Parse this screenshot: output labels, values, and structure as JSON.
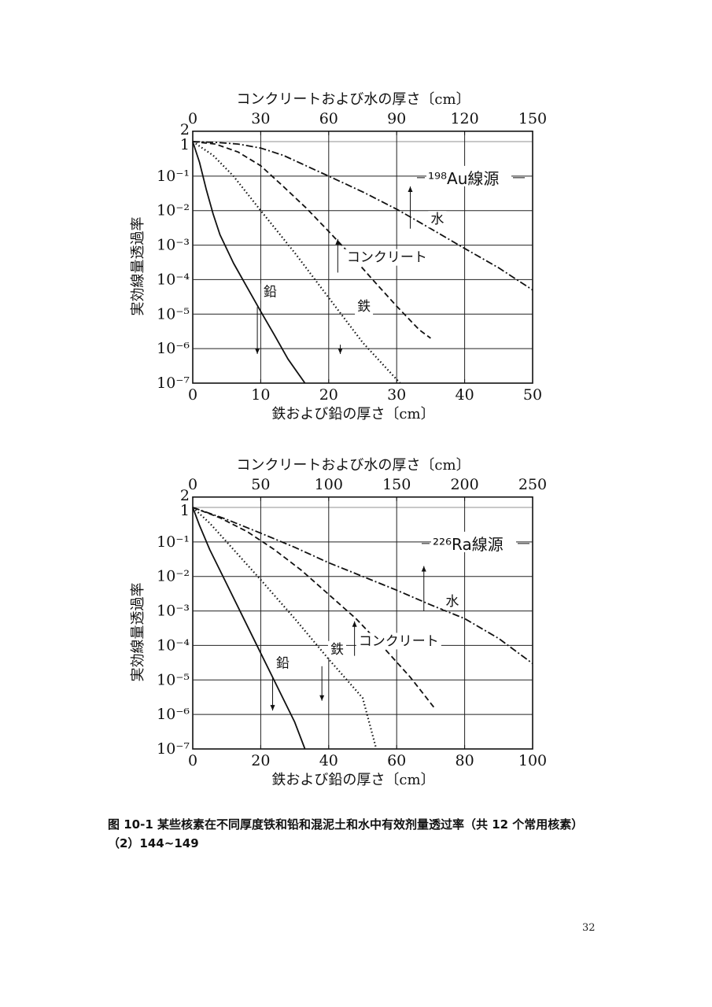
{
  "chart_data": [
    {
      "type": "line",
      "scale": "log",
      "source_label": "¹⁹⁸Au線源",
      "top_axis": {
        "label": "コンクリートおよび水の厚さ〔cm〕",
        "ticks": [
          0,
          30,
          60,
          90,
          120,
          150
        ],
        "range": [
          0,
          150
        ]
      },
      "bottom_axis": {
        "label": "鉄および鉛の厚さ〔cm〕",
        "ticks": [
          0,
          10,
          20,
          30,
          40,
          50
        ],
        "range": [
          0,
          50
        ]
      },
      "ylabel": "実効線量透過率",
      "ylim": [
        1e-07,
        2
      ],
      "yticks": [
        "2",
        "1",
        "10⁻¹",
        "10⁻²",
        "10⁻³",
        "10⁻⁴",
        "10⁻⁵",
        "10⁻⁶",
        "10⁻⁷"
      ],
      "grid": true,
      "series": [
        {
          "name": "鉛",
          "style": "solid",
          "axis": "bottom",
          "x": [
            0,
            1,
            2,
            3,
            4,
            6,
            8,
            10,
            12,
            14,
            16.5
          ],
          "y": [
            1,
            0.25,
            0.04,
            0.008,
            0.002,
            0.0003,
            6e-05,
            1.2e-05,
            2.5e-06,
            5e-07,
            1e-07
          ]
        },
        {
          "name": "鉄",
          "style": "dotted",
          "axis": "bottom",
          "x": [
            0,
            3,
            6,
            10,
            15,
            20,
            25,
            30.5
          ],
          "y": [
            1,
            0.4,
            0.1,
            0.01,
            0.0006,
            3e-05,
            1.5e-06,
            1e-07
          ]
        },
        {
          "name": "コンクリート",
          "style": "dashed",
          "axis": "top",
          "x": [
            0,
            10,
            20,
            30,
            40,
            50,
            60,
            70,
            80,
            90,
            100,
            105
          ],
          "y": [
            1,
            0.85,
            0.5,
            0.2,
            0.05,
            0.012,
            0.0025,
            0.0005,
            9e-05,
            1.7e-05,
            3.5e-06,
            2e-06
          ]
        },
        {
          "name": "水",
          "style": "dashdot",
          "axis": "top",
          "x": [
            0,
            10,
            20,
            30,
            40,
            50,
            60,
            75,
            90,
            105,
            120,
            135,
            150
          ],
          "y": [
            1,
            0.95,
            0.85,
            0.65,
            0.4,
            0.2,
            0.1,
            0.035,
            0.011,
            0.003,
            0.0008,
            0.00022,
            5e-05
          ]
        }
      ],
      "labels": [
        {
          "text": "水",
          "series": "水",
          "x": 105,
          "y": 0.0042,
          "axis": "top",
          "arrow": "up",
          "ax": 96,
          "ay0": 0.003,
          "ay1": 0.05
        },
        {
          "text": "コンクリート",
          "series": "コンクリート",
          "x": 68,
          "y": 0.00033,
          "axis": "top",
          "arrow": "up",
          "ax": 64,
          "ay0": 0.00016,
          "ay1": 0.0015
        },
        {
          "text": "鉛",
          "series": "鉛",
          "x": 10.4,
          "y": 3.3e-05,
          "axis": "bottom",
          "arrow": "down",
          "ax": 9.5,
          "ay0": 1.6e-05,
          "ay1": 7e-07
        },
        {
          "text": "鉄",
          "series": "鉄",
          "x": 24.2,
          "y": 1.25e-05,
          "axis": "bottom",
          "arrow": "down",
          "ax": 21.7,
          "ay0": 1.3e-06,
          "ay1": 7e-07
        }
      ]
    },
    {
      "type": "line",
      "scale": "log",
      "source_label": "²²⁶Ra線源",
      "top_axis": {
        "label": "コンクリートおよび水の厚さ〔cm〕",
        "ticks": [
          0,
          50,
          100,
          150,
          200,
          250
        ],
        "range": [
          0,
          250
        ]
      },
      "bottom_axis": {
        "label": "鉄および鉛の厚さ〔cm〕",
        "ticks": [
          0,
          20,
          40,
          60,
          80,
          100
        ],
        "range": [
          0,
          100
        ]
      },
      "ylabel": "実効線量透過率",
      "ylim": [
        1e-07,
        2
      ],
      "yticks": [
        "2",
        "1",
        "10⁻¹",
        "10⁻²",
        "10⁻³",
        "10⁻⁴",
        "10⁻⁵",
        "10⁻⁶",
        "10⁻⁷"
      ],
      "grid": true,
      "series": [
        {
          "name": "鉛",
          "style": "solid",
          "axis": "bottom",
          "x": [
            0,
            2,
            5,
            10,
            15,
            20,
            25,
            30,
            33
          ],
          "y": [
            1,
            0.3,
            0.06,
            0.006,
            0.0006,
            6e-05,
            6e-06,
            6e-07,
            1e-07
          ]
        },
        {
          "name": "鉄",
          "style": "dotted",
          "axis": "bottom",
          "x": [
            0,
            5,
            10,
            20,
            30,
            40,
            50,
            54
          ],
          "y": [
            1,
            0.35,
            0.1,
            0.008,
            0.0006,
            4e-05,
            3e-06,
            1e-07
          ]
        },
        {
          "name": "コンクリート",
          "style": "dashed",
          "axis": "top",
          "x": [
            0,
            20,
            40,
            60,
            80,
            100,
            120,
            140,
            160,
            178
          ],
          "y": [
            1,
            0.5,
            0.2,
            0.06,
            0.015,
            0.003,
            0.0006,
            9e-05,
            1.2e-05,
            1.5e-06
          ]
        },
        {
          "name": "水",
          "style": "dashdot",
          "axis": "top",
          "x": [
            0,
            25,
            50,
            75,
            100,
            125,
            150,
            175,
            200,
            225,
            250
          ],
          "y": [
            1,
            0.45,
            0.18,
            0.07,
            0.025,
            0.01,
            0.004,
            0.0015,
            0.0006,
            0.00016,
            3e-05
          ]
        }
      ],
      "labels": [
        {
          "text": "水",
          "series": "水",
          "x": 186,
          "y": 0.0014,
          "axis": "top",
          "arrow": "up",
          "ax": 170,
          "ay0": 0.001,
          "ay1": 0.02
        },
        {
          "text": "コンクリート",
          "series": "コンクリート",
          "x": 122,
          "y": 0.0001,
          "axis": "top",
          "arrow": "up",
          "ax": 119,
          "ay0": 5e-05,
          "ay1": 0.0005
        },
        {
          "text": "鉛",
          "series": "鉛",
          "x": 24.5,
          "y": 2.3e-05,
          "axis": "bottom",
          "arrow": "down",
          "ax": 23.5,
          "ay0": 1.2e-05,
          "ay1": 1.3e-06
        },
        {
          "text": "鉄",
          "series": "鉄",
          "x": 40.5,
          "y": 5.8e-05,
          "axis": "bottom",
          "arrow": "down",
          "ax": 38,
          "ay0": 2.5e-05,
          "ay1": 2.5e-06
        }
      ]
    }
  ],
  "caption": {
    "line1": "图  10-1 某些核素在不同厚度铁和铅和混泥土和水中有效剂量透过率（共 12 个常用核素）",
    "line2": "（2）144~149"
  },
  "page_number": "32"
}
